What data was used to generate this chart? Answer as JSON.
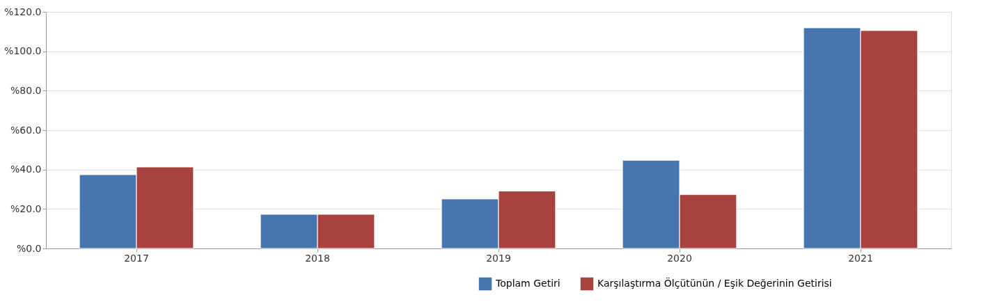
{
  "chart_data": {
    "type": "bar",
    "categories": [
      "2017",
      "2018",
      "2019",
      "2020",
      "2021"
    ],
    "series": [
      {
        "name": "Toplam Getiri",
        "color": "#4675b0",
        "values": [
          37.4,
          17.3,
          25.1,
          44.7,
          111.9
        ]
      },
      {
        "name": "Karşılaştırma Ölçütünün / Eşik Değerinin Getirisi",
        "color": "#a8423f",
        "values": [
          41.3,
          17.3,
          29.1,
          27.3,
          110.5
        ]
      }
    ],
    "ylim": [
      0,
      120
    ],
    "yticks": [
      {
        "value": 0,
        "label": "%0.0"
      },
      {
        "value": 20,
        "label": "%20.0"
      },
      {
        "value": 40,
        "label": "%40.0"
      },
      {
        "value": 60,
        "label": "%60.0"
      },
      {
        "value": 80,
        "label": "%80.0"
      },
      {
        "value": 100,
        "label": "%100.0"
      },
      {
        "value": 120,
        "label": "%120.0"
      }
    ],
    "grid": "y",
    "legend": "bottom right"
  }
}
